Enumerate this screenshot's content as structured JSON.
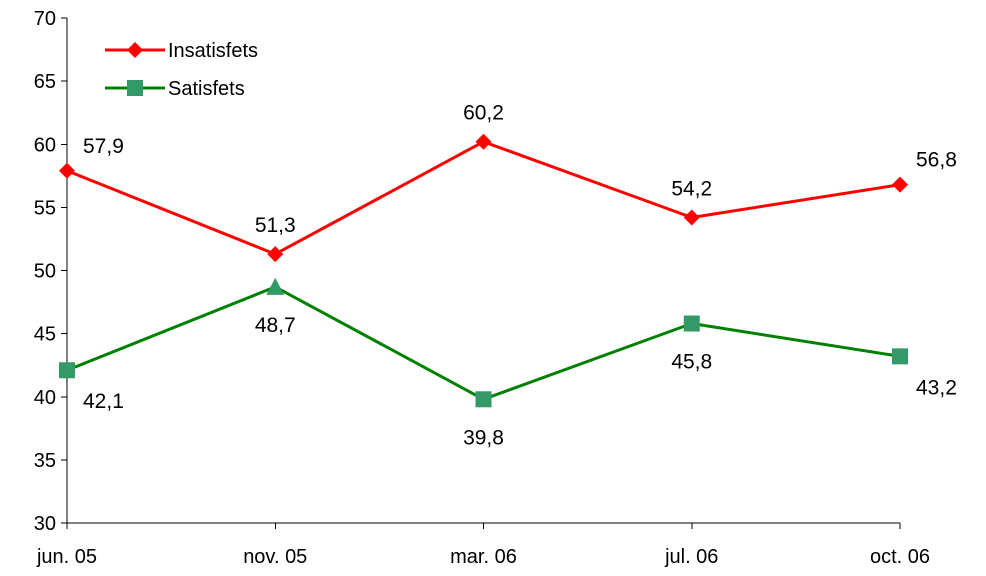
{
  "chart_data": {
    "type": "line",
    "categories": [
      "jun. 05",
      "nov. 05",
      "mar. 06",
      "jul. 06",
      "oct. 06"
    ],
    "ylim": [
      30,
      70
    ],
    "yticks": [
      30,
      35,
      40,
      45,
      50,
      55,
      60,
      65,
      70
    ],
    "ytick_labels": [
      "30",
      "35",
      "40",
      "45",
      "50",
      "55",
      "60",
      "65",
      "70"
    ],
    "grid": false,
    "legend_position": "top-left",
    "series": [
      {
        "name": "Insatisfets",
        "color": "#ff0000",
        "marker": "diamond",
        "values": [
          57.9,
          51.3,
          60.2,
          54.2,
          56.8
        ],
        "labels": [
          "57,9",
          "51,3",
          "60,2",
          "54,2",
          "56,8"
        ],
        "label_position": [
          "above-right",
          "above",
          "above",
          "above",
          "above-right"
        ]
      },
      {
        "name": "Satisfets",
        "color": "#008000",
        "marker_color": "#339966",
        "marker": "square",
        "point_markers": [
          "square",
          "triangle",
          "square",
          "square",
          "square"
        ],
        "values": [
          42.1,
          48.7,
          39.8,
          45.8,
          43.2
        ],
        "labels": [
          "42,1",
          "48,7",
          "39,8",
          "45,8",
          "43,2"
        ],
        "label_position": [
          "below-right",
          "below",
          "below",
          "below",
          "below-right"
        ]
      }
    ]
  }
}
